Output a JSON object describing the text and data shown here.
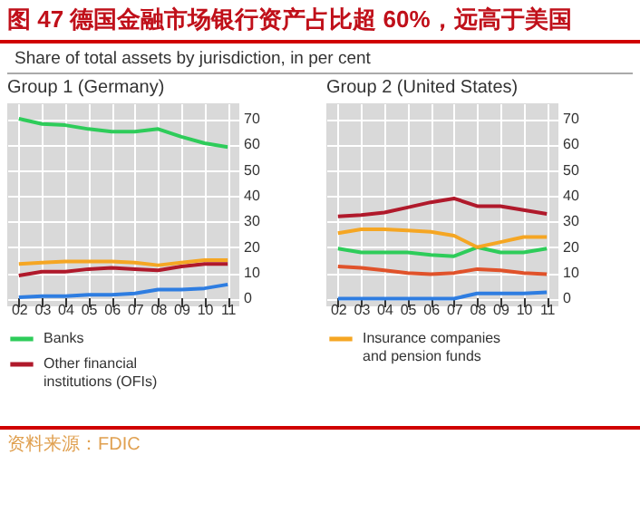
{
  "chart_data": [
    {
      "type": "line",
      "title": "Group 1 (Germany)",
      "annotations": [
        "图 47  德国金融市场银行资产占比超 60%，远高于美国",
        "Share of total assets by jurisdiction, in per cent",
        "资料来源：FDIC"
      ],
      "categories": [
        "02",
        "03",
        "04",
        "05",
        "06",
        "07",
        "08",
        "09",
        "10",
        "11"
      ],
      "series": [
        {
          "name": "Banks",
          "color": "#2ecc5a",
          "values": [
            70,
            68,
            67.5,
            66,
            65,
            65,
            66,
            63,
            60.5,
            59
          ]
        },
        {
          "name": "Other financial institutions (OFIs)",
          "color": "#b0192b",
          "values": [
            9,
            10.5,
            10.5,
            11.5,
            12,
            11.5,
            11,
            12.5,
            13.5,
            13.5
          ]
        },
        {
          "color": "#f5a623",
          "values": [
            13.5,
            14,
            14.5,
            14.5,
            14.5,
            14,
            13,
            14,
            15,
            15
          ]
        },
        {
          "color": "#2e7de1",
          "values": [
            0.5,
            1,
            1,
            1.5,
            1.5,
            2,
            3.5,
            3.5,
            4,
            5.5
          ]
        }
      ],
      "ylim": [
        -3,
        76
      ],
      "yticks": [
        0,
        10,
        20,
        30,
        40,
        50,
        60,
        70
      ],
      "grid": true,
      "legend": "bottom"
    },
    {
      "type": "line",
      "title": "Group 2 (United States)",
      "categories": [
        "02",
        "03",
        "04",
        "05",
        "06",
        "07",
        "08",
        "09",
        "10",
        "11"
      ],
      "series": [
        {
          "color": "#2ecc5a",
          "values": [
            19.5,
            18,
            18,
            18,
            17,
            16.5,
            20,
            18,
            18,
            19.5
          ]
        },
        {
          "color": "#b0192b",
          "values": [
            32,
            32.5,
            33.5,
            35.5,
            37.5,
            39,
            36,
            36,
            34.5,
            33
          ]
        },
        {
          "name": "Insurance companies and pension funds",
          "color": "#f5a623",
          "values": [
            25.5,
            27,
            27,
            26.5,
            26,
            24.5,
            20,
            22,
            24,
            24
          ]
        },
        {
          "color": "#e0522a",
          "values": [
            12.5,
            12,
            11,
            10,
            9.5,
            10,
            11.5,
            11,
            10,
            9.5
          ]
        },
        {
          "color": "#2e7de1",
          "values": [
            0,
            0,
            0,
            0,
            0,
            0,
            2,
            2,
            2,
            2.5
          ]
        }
      ],
      "ylim": [
        -3,
        76
      ],
      "yticks": [
        0,
        10,
        20,
        30,
        40,
        50,
        60,
        70
      ],
      "grid": true,
      "legend": "bottom"
    }
  ]
}
